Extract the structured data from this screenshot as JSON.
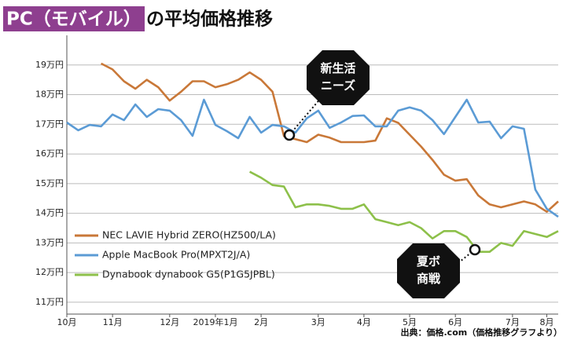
{
  "chart_data": {
    "type": "line",
    "title_parts": [
      "PC（モバイル）",
      "の平均価格推移"
    ],
    "source": "出典：価格.com（価格推移グラフより）",
    "categories": [
      "10月",
      null,
      null,
      null,
      "11月",
      null,
      null,
      null,
      null,
      "12月",
      null,
      null,
      null,
      "2019年1月",
      null,
      null,
      null,
      "2月",
      null,
      null,
      null,
      null,
      "3月",
      null,
      null,
      null,
      "4月",
      null,
      null,
      null,
      "5月",
      null,
      null,
      null,
      "6月",
      null,
      null,
      null,
      null,
      "7月",
      null,
      null,
      "8月",
      null
    ],
    "ylim": [
      10.6,
      20.0
    ],
    "yticks": [
      {
        "value": 11,
        "label": "11万円"
      },
      {
        "value": 12,
        "label": "12万円"
      },
      {
        "value": 13,
        "label": "13万円"
      },
      {
        "value": 14,
        "label": "14万円"
      },
      {
        "value": 15,
        "label": "15万円"
      },
      {
        "value": 16,
        "label": "16万円"
      },
      {
        "value": 17,
        "label": "17万円"
      },
      {
        "value": 18,
        "label": "18万円"
      },
      {
        "value": 19,
        "label": "19万円"
      }
    ],
    "grid": true,
    "legend": "lower-left",
    "series": [
      {
        "name": "NEC LAVIE Hybrid ZERO(HZ500/LA)",
        "color": "#c97838",
        "values": [
          null,
          null,
          null,
          19.05,
          18.85,
          18.45,
          18.2,
          18.5,
          18.25,
          17.8,
          18.1,
          18.45,
          18.45,
          18.25,
          18.35,
          18.5,
          18.75,
          18.5,
          18.1,
          16.6,
          16.5,
          16.4,
          16.65,
          16.55,
          16.4,
          16.4,
          16.4,
          16.45,
          17.2,
          17.05,
          16.65,
          16.25,
          15.8,
          15.3,
          15.1,
          15.15,
          14.6,
          14.3,
          14.2,
          14.3,
          14.4,
          14.3,
          14.05,
          14.4
        ]
      },
      {
        "name": "Apple MacBook Pro(MPXT2J/A)",
        "color": "#5b9bd5",
        "values": [
          17.06,
          16.8,
          16.98,
          16.93,
          17.33,
          17.14,
          17.67,
          17.25,
          17.51,
          17.46,
          17.14,
          16.61,
          17.83,
          16.98,
          16.77,
          16.53,
          17.25,
          16.72,
          16.98,
          16.93,
          16.72,
          17.2,
          17.46,
          16.88,
          17.06,
          17.28,
          17.3,
          16.93,
          16.93,
          17.46,
          17.57,
          17.46,
          17.14,
          16.67,
          17.25,
          17.83,
          17.06,
          17.09,
          16.53,
          16.93,
          16.85,
          14.8,
          14.15,
          13.88
        ]
      },
      {
        "name": "Dynabook dynabook G5(P1G5JPBL)",
        "color": "#8dc04a",
        "values": [
          null,
          null,
          null,
          null,
          null,
          null,
          null,
          null,
          null,
          null,
          null,
          null,
          null,
          null,
          null,
          null,
          15.4,
          15.2,
          14.95,
          14.9,
          14.2,
          14.3,
          14.3,
          14.25,
          14.15,
          14.15,
          14.3,
          13.8,
          13.7,
          13.6,
          13.7,
          13.5,
          13.15,
          13.4,
          13.4,
          13.2,
          12.7,
          12.7,
          13.0,
          12.9,
          13.4,
          13.3,
          13.2,
          13.4
        ]
      }
    ],
    "annotations": [
      [
        "新生活",
        "ニーズ"
      ],
      [
        "夏ボ",
        "商戦"
      ]
    ]
  }
}
